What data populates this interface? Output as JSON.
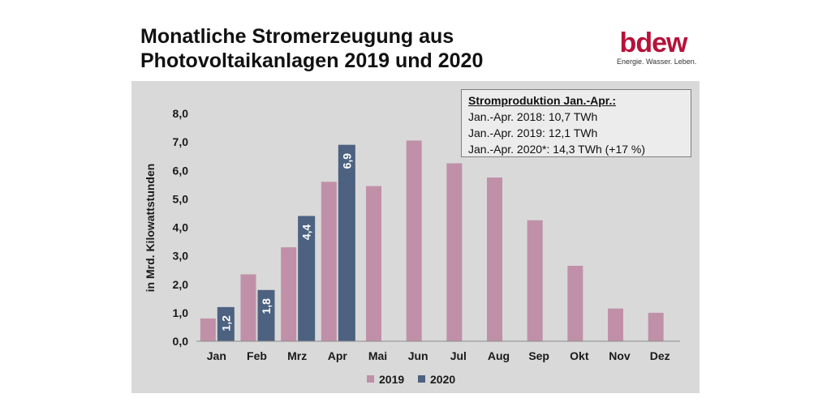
{
  "header": {
    "title_line1": "Monatliche Stromerzeugung aus",
    "title_line2": "Photovoltaikanlagen 2019 und 2020"
  },
  "logo": {
    "word": "bdew",
    "tagline": "Energie. Wasser. Leben."
  },
  "infobox": {
    "heading": "Stromproduktion Jan.-Apr.:",
    "lines": [
      "Jan.-Apr. 2018:  10,7 TWh",
      "Jan.-Apr. 2019:  12,1 TWh",
      "Jan.-Apr. 2020*: 14,3 TWh (+17 %)"
    ]
  },
  "colors": {
    "series_2019": "#c090a8",
    "series_2020": "#4d6280",
    "panel_background": "#d9d9d9"
  },
  "chart_data": {
    "type": "bar",
    "ylabel": "in Mrd. Kilowattstunden",
    "ylim": [
      0,
      8
    ],
    "yticks": [
      "0,0",
      "1,0",
      "2,0",
      "3,0",
      "4,0",
      "5,0",
      "6,0",
      "7,0",
      "8,0"
    ],
    "grid": false,
    "legend": "bottom",
    "categories": [
      "Jan",
      "Feb",
      "Mrz",
      "Apr",
      "Mai",
      "Jun",
      "Jul",
      "Aug",
      "Sep",
      "Okt",
      "Nov",
      "Dez"
    ],
    "series": [
      {
        "name": "2019",
        "values": [
          0.8,
          2.35,
          3.3,
          5.6,
          5.45,
          7.05,
          6.25,
          5.75,
          4.25,
          2.65,
          1.15,
          1.0
        ]
      },
      {
        "name": "2020",
        "values": [
          1.2,
          1.8,
          4.4,
          6.9,
          null,
          null,
          null,
          null,
          null,
          null,
          null,
          null
        ],
        "data_labels": [
          "1,2",
          "1,8",
          "4,4",
          "6,9"
        ]
      }
    ]
  }
}
